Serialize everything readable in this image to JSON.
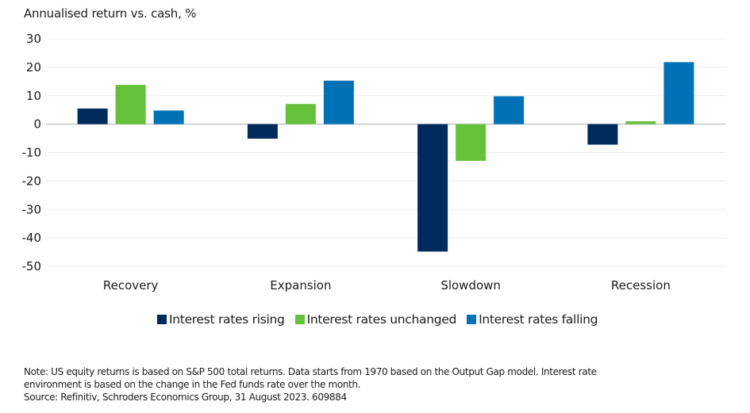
{
  "chart_data": {
    "type": "bar",
    "title": "Annualised return vs. cash, %",
    "xlabel": "",
    "ylabel": "Annualised return vs. cash, %",
    "categories": [
      "Recovery",
      "Expansion",
      "Slowdown",
      "Recession"
    ],
    "series": [
      {
        "name": "Interest rates rising",
        "color": "#002a5c",
        "values": [
          5.5,
          -5.1,
          -44.8,
          -7.2
        ]
      },
      {
        "name": "Interest rates unchanged",
        "color": "#66c13a",
        "values": [
          13.8,
          7.1,
          -12.9,
          1.0
        ]
      },
      {
        "name": "Interest rates falling",
        "color": "#0071b5",
        "values": [
          4.8,
          15.3,
          9.8,
          21.8
        ]
      }
    ],
    "ylim": [
      -50,
      30
    ],
    "yticks": [
      30,
      20,
      10,
      0,
      -10,
      -20,
      -30,
      -40,
      -50
    ],
    "grid": true,
    "legend_position": "bottom"
  },
  "note": {
    "line1": "Note: US equity returns is based on S&P 500 total returns. Data starts from 1970 based on the Output Gap model. Interest rate",
    "line2": "environment is based on the change in the Fed funds rate over the month.",
    "source": "Source: Refinitiv, Schroders Economics Group, 31 August 2023. 609884"
  }
}
